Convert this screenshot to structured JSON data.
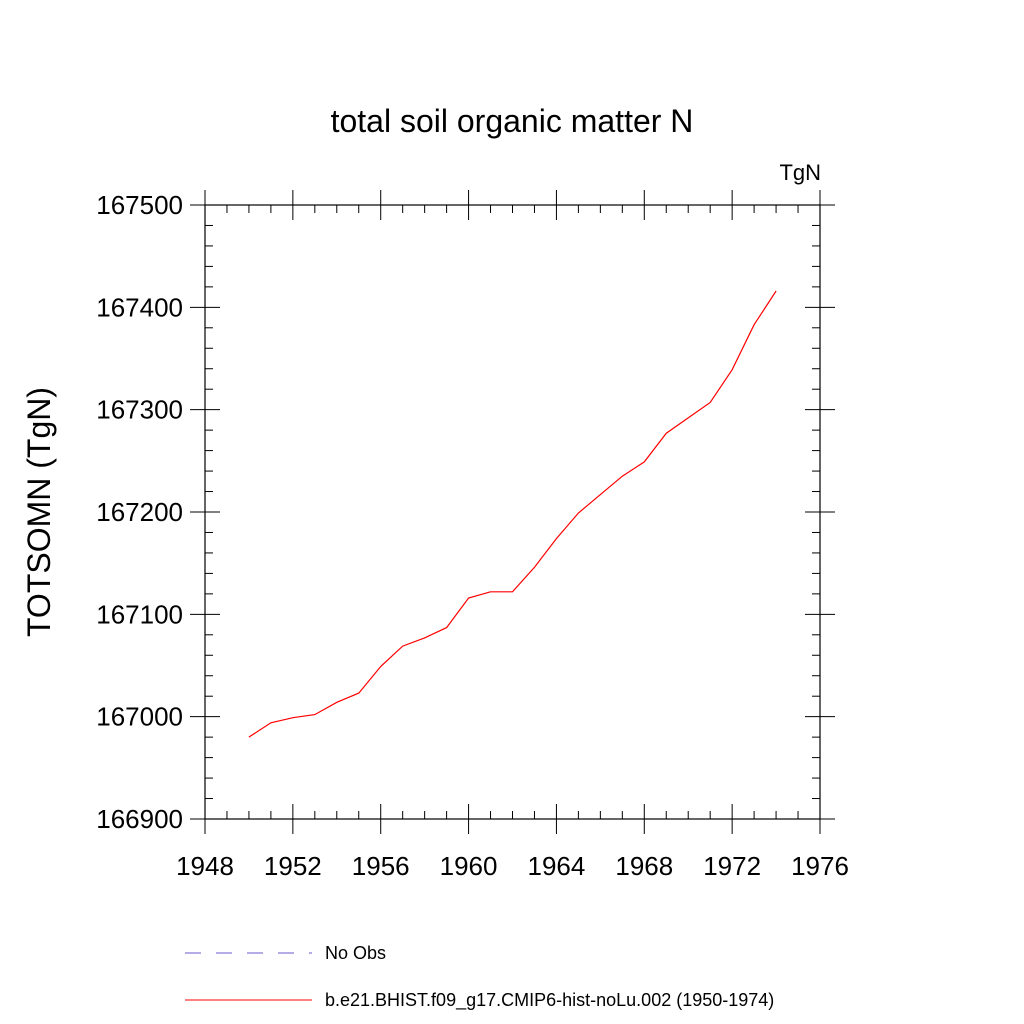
{
  "chart_data": {
    "type": "line",
    "title": "total soil organic matter N",
    "units_label": "TgN",
    "ylabel": "TOTSOMN  (TgN)",
    "xlabel": "",
    "xlim": [
      1948,
      1976
    ],
    "ylim": [
      166900,
      167500
    ],
    "x_ticks": [
      1948,
      1952,
      1956,
      1960,
      1964,
      1968,
      1972,
      1976
    ],
    "y_ticks": [
      166900,
      167000,
      167100,
      167200,
      167300,
      167400,
      167500
    ],
    "x_minor_step": 1,
    "y_minor_step": 20,
    "grid": false,
    "legend_position": "bottom",
    "series": [
      {
        "name": "b.e21.BHIST.f09_g17.CMIP6-hist-noLu.002 (1950-1974)",
        "color": "#ff0000",
        "style": "solid",
        "x": [
          1950,
          1951,
          1952,
          1953,
          1954,
          1955,
          1956,
          1957,
          1958,
          1959,
          1960,
          1961,
          1962,
          1963,
          1964,
          1965,
          1966,
          1967,
          1968,
          1969,
          1970,
          1971,
          1972,
          1973,
          1974
        ],
        "values": [
          166980,
          166994,
          166999,
          167002,
          167014,
          167023,
          167049,
          167069,
          167077,
          167087,
          167116,
          167122,
          167122,
          167146,
          167174,
          167199,
          167217,
          167235,
          167249,
          167277,
          167292,
          167307,
          167339,
          167383,
          167416
        ]
      }
    ],
    "legend": [
      {
        "label": "No Obs",
        "color": "#6a5acd",
        "style": "dashed"
      },
      {
        "label": "b.e21.BHIST.f09_g17.CMIP6-hist-noLu.002 (1950-1974)",
        "color": "#ff0000",
        "style": "solid"
      }
    ]
  }
}
